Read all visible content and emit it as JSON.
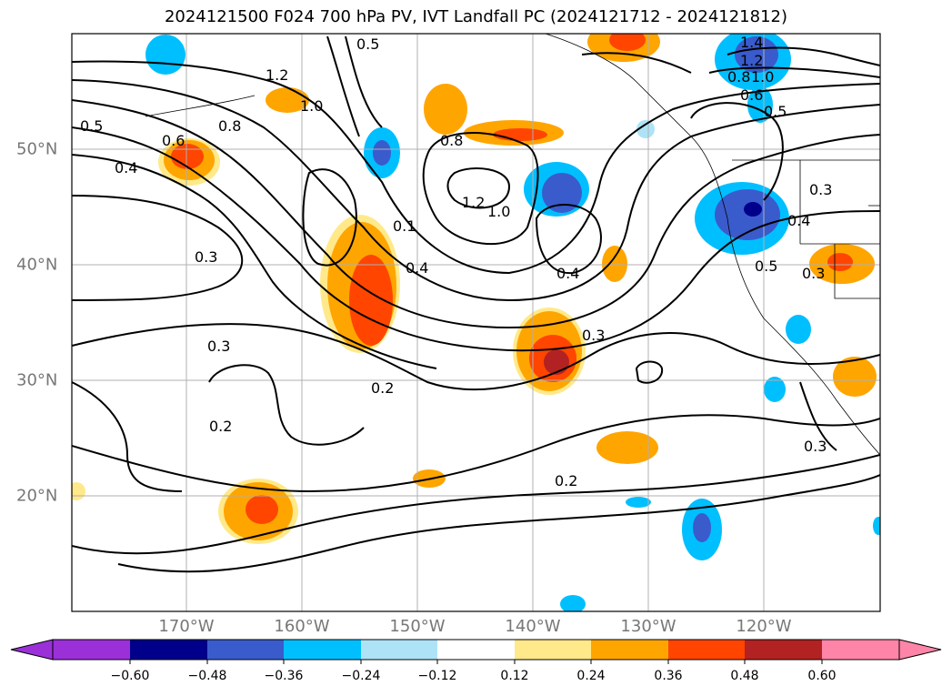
{
  "title": "2024121500 F024 700 hPa PV, IVT Landfall PC (2024121712 - 2024121812)",
  "map": {
    "extent_lon": [
      -180,
      -110
    ],
    "extent_lat": [
      10,
      60
    ],
    "lon_ticks": [
      {
        "lon": -170,
        "label": "170°W"
      },
      {
        "lon": -160,
        "label": "160°W"
      },
      {
        "lon": -150,
        "label": "150°W"
      },
      {
        "lon": -140,
        "label": "140°W"
      },
      {
        "lon": -130,
        "label": "130°W"
      },
      {
        "lon": -120,
        "label": "120°W"
      }
    ],
    "lat_ticks": [
      {
        "lat": 50,
        "label": "50°N"
      },
      {
        "lat": 40,
        "label": "40°N"
      },
      {
        "lat": 30,
        "label": "30°N"
      },
      {
        "lat": 20,
        "label": "20°N"
      }
    ],
    "contour_labels": [
      "0.5",
      "1.2",
      "0.5",
      "1.0",
      "0.8",
      "0.6",
      "0.4",
      "0.8",
      "1.2",
      "1.0",
      "0.1",
      "0.4",
      "0.3",
      "0.4",
      "0.3",
      "0.2",
      "0.2",
      "0.2",
      "0.3",
      "1.4",
      "1.2",
      "1.0",
      "0.8",
      "0.6",
      "0.5",
      "0.3",
      "0.4",
      "0.5",
      "0.3",
      "0.3"
    ],
    "land_color": "#ffffff",
    "grid_color": "#b0b0b0"
  },
  "colorbar": {
    "levels": [
      -0.6,
      -0.48,
      -0.36,
      -0.24,
      -0.12,
      0.12,
      0.24,
      0.36,
      0.48,
      0.6
    ],
    "tick_labels": [
      "−0.60",
      "−0.48",
      "−0.36",
      "−0.24",
      "−0.12",
      "0.12",
      "0.24",
      "0.36",
      "0.48",
      "0.60"
    ],
    "colors": [
      "#9b30d9",
      "#00008b",
      "#3a5bcc",
      "#00bfff",
      "#aee3f7",
      "#ffffff",
      "#ffe98a",
      "#ffa500",
      "#ff4500",
      "#b22222",
      "#ff85a8"
    ]
  }
}
